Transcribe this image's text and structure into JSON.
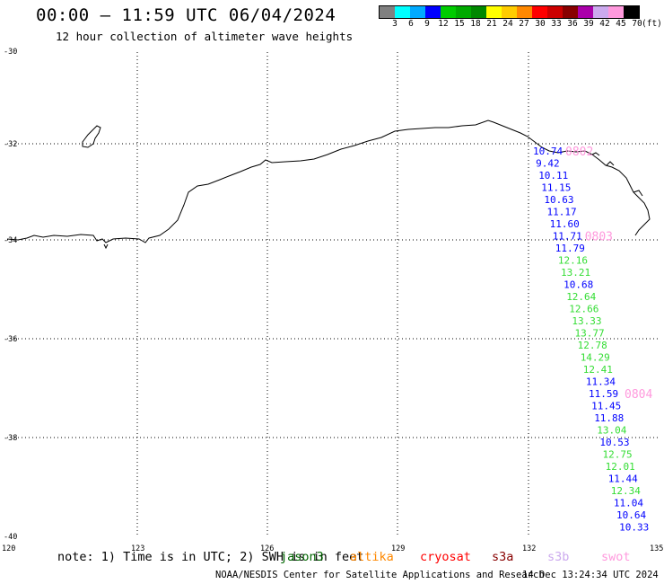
{
  "header": {
    "title": "00:00 – 11:59 UTC 06/04/2024",
    "subtitle": "12 hour collection of altimeter wave heights"
  },
  "legend": {
    "colors": [
      "#808080",
      "#00ffff",
      "#00aaff",
      "#0000ff",
      "#00cc00",
      "#00aa00",
      "#008800",
      "#ffff00",
      "#ffcc00",
      "#ff8800",
      "#ff0000",
      "#cc0000",
      "#880000",
      "#aa00aa",
      "#ccaaee",
      "#ff99dd",
      "#000000"
    ],
    "labels": [
      "3",
      "6",
      "9",
      "12",
      "15",
      "18",
      "21",
      "24",
      "27",
      "30",
      "33",
      "36",
      "39",
      "42",
      "45",
      "70"
    ],
    "unit": "(ft)"
  },
  "map": {
    "lat_labels": [
      "-30",
      "-32",
      "-34",
      "-36",
      "-38",
      "-40"
    ],
    "lon_labels": [
      "120",
      "123",
      "126",
      "129",
      "132",
      "135"
    ]
  },
  "track": [
    {
      "v": "10.74",
      "c": "#0000ff"
    },
    {
      "v": "9.42",
      "c": "#0000ff"
    },
    {
      "v": "10.11",
      "c": "#0000ff"
    },
    {
      "v": "11.15",
      "c": "#0000ff"
    },
    {
      "v": "10.63",
      "c": "#0000ff"
    },
    {
      "v": "11.17",
      "c": "#0000ff"
    },
    {
      "v": "11.60",
      "c": "#0000ff"
    },
    {
      "v": "11.71",
      "c": "#0000ff"
    },
    {
      "v": "11.79",
      "c": "#0000ff"
    },
    {
      "v": "12.16",
      "c": "#33dd33"
    },
    {
      "v": "13.21",
      "c": "#33dd33"
    },
    {
      "v": "10.68",
      "c": "#0000ff"
    },
    {
      "v": "12.64",
      "c": "#33dd33"
    },
    {
      "v": "12.66",
      "c": "#33dd33"
    },
    {
      "v": "13.33",
      "c": "#33dd33"
    },
    {
      "v": "13.77",
      "c": "#33dd33"
    },
    {
      "v": "12.78",
      "c": "#33dd33"
    },
    {
      "v": "14.29",
      "c": "#33dd33"
    },
    {
      "v": "12.41",
      "c": "#33dd33"
    },
    {
      "v": "11.34",
      "c": "#0000ff"
    },
    {
      "v": "11.59",
      "c": "#0000ff"
    },
    {
      "v": "11.45",
      "c": "#0000ff"
    },
    {
      "v": "11.88",
      "c": "#0000ff"
    },
    {
      "v": "13.04",
      "c": "#33dd33"
    },
    {
      "v": "10.53",
      "c": "#0000ff"
    },
    {
      "v": "12.75",
      "c": "#33dd33"
    },
    {
      "v": "12.01",
      "c": "#33dd33"
    },
    {
      "v": "11.44",
      "c": "#0000ff"
    },
    {
      "v": "12.34",
      "c": "#33dd33"
    },
    {
      "v": "11.04",
      "c": "#0000ff"
    },
    {
      "v": "10.64",
      "c": "#0000ff"
    },
    {
      "v": "10.33",
      "c": "#0000ff"
    }
  ],
  "time_labels": [
    {
      "t": "0802"
    },
    {
      "t": "0803"
    },
    {
      "t": "0804"
    }
  ],
  "time_label_color": "#ff99dd",
  "footer": {
    "note": "note: 1) Time is in UTC; 2) SWH is in feet",
    "satellites": [
      {
        "name": "jason3",
        "color": "#006600"
      },
      {
        "name": "altika",
        "color": "#ff8800"
      },
      {
        "name": "cryosat",
        "color": "#ff0000"
      },
      {
        "name": "s3a",
        "color": "#880000"
      },
      {
        "name": "s3b",
        "color": "#ccaaee"
      },
      {
        "name": "swot",
        "color": "#ff99dd"
      }
    ],
    "credit": "NOAA/NESDIS Center for Satellite Applications and Research",
    "timestamp": "14 Dec 13:24:34 UTC 2024"
  }
}
